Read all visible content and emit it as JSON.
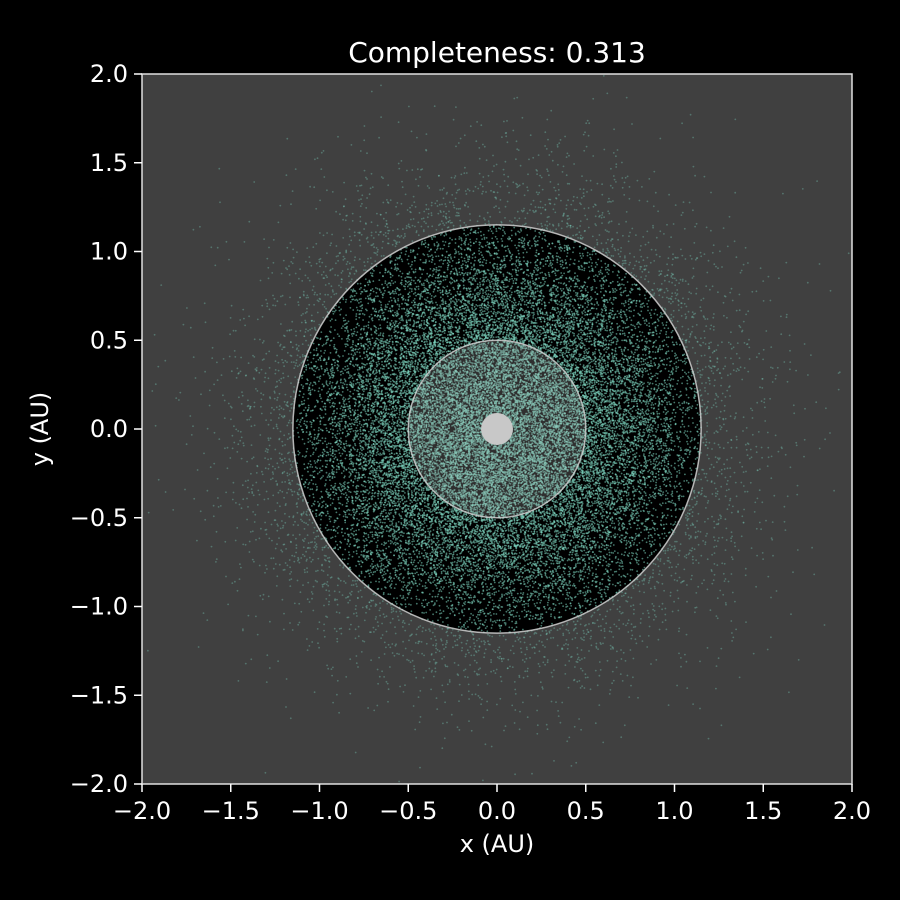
{
  "chart_data": {
    "type": "scatter",
    "title": "Completeness: 0.313",
    "xlabel": "x (AU)",
    "ylabel": "y (AU)",
    "xlim": [
      -2.0,
      2.0
    ],
    "ylim": [
      -2.0,
      2.0
    ],
    "x_ticks": [
      -2.0,
      -1.5,
      -1.0,
      -0.5,
      0.0,
      0.5,
      1.0,
      1.5,
      2.0
    ],
    "y_ticks": [
      -2.0,
      -1.5,
      -1.0,
      -0.5,
      0.0,
      0.5,
      1.0,
      1.5,
      2.0
    ],
    "x_tick_labels": [
      "−2.0",
      "−1.5",
      "−1.0",
      "−0.5",
      "0.0",
      "0.5",
      "1.0",
      "1.5",
      "2.0"
    ],
    "y_tick_labels": [
      "−2.0",
      "−1.5",
      "−1.0",
      "−0.5",
      "0.0",
      "0.5",
      "1.0",
      "1.5",
      "2.0"
    ],
    "grid": false,
    "legend": "none",
    "inner_working_angle_au": 0.5,
    "outer_working_angle_au": 1.15,
    "star_radius_au": 0.09,
    "point_cloud": {
      "center": [
        0.0,
        0.0
      ],
      "radial_scale_au": 0.55,
      "approximate_count": 30000
    },
    "colors": {
      "figure_background": "#000000",
      "axes_background": "#404040",
      "detectable_region": "#000000",
      "points": "#7fd8c3",
      "circle_edge": "#d0d0d0",
      "star": "#c8c8c8",
      "text": "#ffffff"
    }
  }
}
